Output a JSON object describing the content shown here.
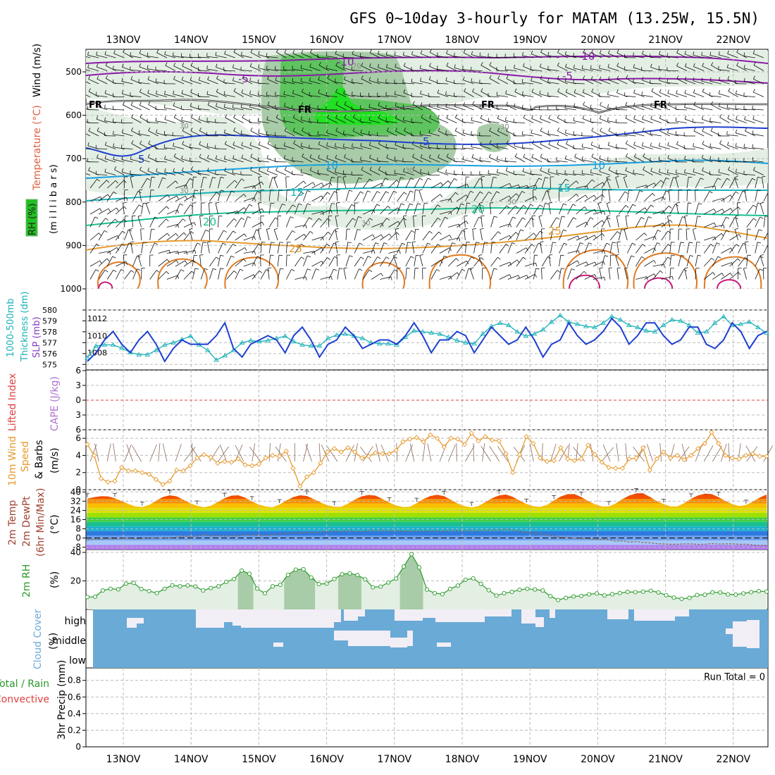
{
  "chart_data": {
    "type": "meteogram",
    "title": "GFS 0~10day 3-hourly for MATAM (13.25W, 15.5N)",
    "date_labels": [
      "13NOV",
      "14NOV",
      "15NOV",
      "16NOV",
      "17NOV",
      "18NOV",
      "19NOV",
      "20NOV",
      "21NOV",
      "22NOV"
    ],
    "colors": {
      "rh_light": "#e3efe3",
      "rh_mid": "#a8cca8",
      "rh_dark": "#5ec45e",
      "rh_bright": "#22e022",
      "dark_blue": "#1e3fd0",
      "cyan": "#1ab2b8",
      "orange": "#e69a2e",
      "purple": "#8a1aa8",
      "green": "#2b9a2b",
      "cloud": "#6aaad6",
      "cloud_clear": "#f2eef5"
    },
    "panels": {
      "upper": {
        "labels": {
          "rh": "RH (%)",
          "temp": "Temperature (°C)",
          "wind": "Wind (m/s)",
          "unit": "(m i l l i b a r s)"
        },
        "yticks": [
          500,
          600,
          700,
          800,
          900,
          1000
        ],
        "isotherm_labels": [
          "-10",
          "-5",
          "FR",
          "5",
          "10",
          "15",
          "20",
          "25"
        ],
        "rh_labels": [
          "70",
          "30"
        ]
      },
      "slp": {
        "labels": {
          "thick": "1000-500mb",
          "thick2": "Thickness (dm)",
          "slp": "SLP (mb)"
        },
        "thickness_ticks": [
          "580",
          "579",
          "578",
          "577",
          "576",
          "575"
        ],
        "slp_ticks": [
          "1012",
          "1010",
          "1008"
        ],
        "slp_range": [
          1006,
          1013
        ],
        "thickness_range": [
          574.5,
          580
        ],
        "slp_values": [
          1007.0,
          1008.0,
          1009.5,
          1010.5,
          1009.0,
          1008.0,
          1009.5,
          1010.5,
          1009.0,
          1007.0,
          1008.5,
          1009.5,
          1009.0,
          1009.0,
          1009.0,
          1010.0,
          1011.5,
          1008.5,
          1007.5,
          1009.0,
          1009.5,
          1010.0,
          1009.5,
          1008.0,
          1010.0,
          1011.0,
          1009.5,
          1007.5,
          1009.0,
          1009.5,
          1011.0,
          1010.0,
          1008.5,
          1009.0,
          1009.5,
          1009.5,
          1009.0,
          1010.0,
          1011.5,
          1010.0,
          1008.0,
          1009.5,
          1009.5,
          1010.5,
          1010.0,
          1008.0,
          1009.5,
          1011.0,
          1010.0,
          1009.0,
          1009.5,
          1011.0,
          1009.5,
          1007.5,
          1009.0,
          1009.5,
          1011.5,
          1010.0,
          1009.0,
          1009.5,
          1010.5,
          1012.0,
          1011.0,
          1009.0,
          1010.0,
          1011.5,
          1011.5,
          1010.0,
          1009.0,
          1009.5,
          1011.0,
          1011.0,
          1009.0,
          1008.5,
          1009.5,
          1011.5,
          1010.5,
          1008.5,
          1010.0,
          1010.5
        ],
        "thickness_values": [
          575.6,
          576.7,
          576.8,
          576.8,
          576.5,
          576.1,
          575.9,
          575.9,
          576.3,
          576.8,
          577.0,
          577.3,
          577.6,
          576.8,
          576.3,
          575.4,
          575.8,
          576.3,
          577.0,
          577.2,
          577.1,
          577.2,
          577.4,
          577.6,
          577.1,
          576.8,
          576.7,
          576.7,
          577.4,
          577.7,
          577.8,
          577.6,
          577.4,
          577.0,
          576.9,
          576.9,
          576.8,
          577.5,
          578.1,
          578.0,
          577.9,
          577.8,
          577.5,
          577.2,
          577.0,
          576.9,
          577.8,
          578.5,
          578.8,
          578.6,
          578.0,
          577.6,
          577.8,
          578.2,
          578.9,
          579.5,
          578.9,
          578.7,
          578.5,
          578.4,
          578.8,
          579.4,
          579.1,
          578.6,
          578.4,
          578.1,
          578.0,
          578.6,
          579.1,
          579.0,
          578.6,
          577.9,
          578.0,
          578.8,
          579.4,
          578.6,
          578.7,
          578.9,
          578.4,
          577.9
        ]
      },
      "cape": {
        "labels": {
          "li": "Lifted Index",
          "cape": "CAPE (J/kg)"
        },
        "li_ticks": [
          "-6",
          "-3",
          "0",
          "3",
          "6"
        ],
        "li_range": [
          -6,
          6
        ],
        "li_values": []
      },
      "wind10m": {
        "labels": {
          "l1": "10m Wind",
          "l2": "Speed",
          "l3": "& Barbs",
          "l4": "(m/s)"
        },
        "yticks": [
          "6",
          "4",
          "2",
          "0"
        ],
        "range": [
          0,
          7
        ],
        "speed_values": [
          5.3,
          4.0,
          1.3,
          0.9,
          1.0,
          2.6,
          2.2,
          2.2,
          2.0,
          1.8,
          1.2,
          0.6,
          1.0,
          2.3,
          2.2,
          2.8,
          3.7,
          4.1,
          3.8,
          3.1,
          3.3,
          3.2,
          3.6,
          2.9,
          2.8,
          3.0,
          3.7,
          4.0,
          3.9,
          4.5,
          2.5,
          0.4,
          1.5,
          2.0,
          3.1,
          4.4,
          4.8,
          4.4,
          4.9,
          4.4,
          3.7,
          3.9,
          4.3,
          4.2,
          4.2,
          4.6,
          5.6,
          5.9,
          6.1,
          5.6,
          6.4,
          6.0,
          5.0,
          6.0,
          5.9,
          5.3,
          6.6,
          5.7,
          6.2,
          5.8,
          5.7,
          4.2,
          2.0,
          4.1,
          6.2,
          5.4,
          3.7,
          3.3,
          3.4,
          4.9,
          3.6,
          3.4,
          3.6,
          5.2,
          4.1,
          3.2,
          2.6,
          2.5,
          2.5,
          3.6,
          3.7,
          4.9,
          2.3,
          3.6,
          4.4,
          3.7,
          4.0,
          3.5,
          4.0,
          4.8,
          5.4,
          6.7,
          5.4,
          4.0,
          3.7,
          3.6,
          4.0,
          4.2,
          3.9,
          3.9
        ]
      },
      "temp2m": {
        "labels": {
          "l1": "2m Temp",
          "l2": "2m DewPt",
          "l3": "(6hr Min/Max)",
          "l4": "(°C)"
        },
        "yticks": [
          "40",
          "32",
          "24",
          "16",
          "8",
          "0",
          "-8"
        ],
        "range": [
          -10,
          42
        ],
        "temp_values": [
          34.2,
          35.5,
          36.3,
          36.2,
          34.5,
          32.0,
          29.5,
          27.4,
          26.8,
          28.7,
          32.4,
          35.6,
          37.1,
          36.2,
          33.3,
          30.2,
          27.9,
          26.7,
          28.0,
          31.3,
          34.6,
          36.8,
          37.1,
          35.0,
          31.7,
          29.1,
          27.4,
          26.7,
          29.1,
          32.6,
          35.5,
          37.1,
          36.5,
          33.8,
          30.9,
          28.5,
          27.2,
          27.1,
          30.0,
          33.5,
          36.2,
          37.4,
          36.8,
          34.0,
          30.8,
          28.3,
          26.8,
          27.2,
          30.3,
          33.9,
          36.5,
          37.6,
          36.4,
          33.2,
          30.0,
          27.7,
          26.6,
          27.8,
          31.1,
          34.6,
          37.0,
          37.8,
          35.8,
          32.5,
          29.6,
          27.7,
          27.0,
          28.8,
          32.6,
          36.0,
          38.1,
          38.2,
          35.6,
          32.1,
          29.4,
          27.5,
          27.4,
          30.0,
          33.8,
          36.9,
          38.7,
          38.8,
          35.7,
          32.1,
          29.5,
          27.5,
          27.5,
          30.4,
          34.1,
          36.9,
          38.5,
          38.2,
          35.5,
          32.2,
          29.5,
          27.8,
          28.6,
          31.6,
          35.1,
          37.8
        ],
        "dew_values": [
          -1.7,
          -0.8,
          -1.2,
          -0.5,
          -0.9,
          -0.3,
          -0.2,
          -0.8,
          -0.5,
          0.1,
          -0.1,
          -0.1,
          0.1,
          0.5,
          1.7,
          1.3,
          1.7,
          2.6,
          1.8,
          2.0,
          1.7,
          1.8,
          1.8,
          2.8,
          2.8,
          2.2,
          2.5,
          2.7,
          3.4,
          4.2,
          4.2,
          4.7,
          4.7,
          4.8,
          5.3,
          5.6,
          6.2,
          5.7,
          6.6,
          5.7,
          5.7,
          6.5,
          6.3,
          6.7,
          6.3,
          6.3,
          6.2,
          5.9,
          6.1,
          6.1,
          6.4,
          6.1,
          6.0,
          6.8,
          6.2,
          6.3,
          6.6,
          6.4,
          6.7,
          6.9,
          6.7,
          7.6,
          6.6,
          6.2,
          4.8,
          4.5,
          3.6,
          2.5,
          1.7,
          0.6,
          0.5,
          -0.2,
          -0.3,
          -0.6,
          -1.2,
          -1.0,
          -1.6,
          -2.8,
          -2.5,
          -3.5,
          -3.1,
          -3.9,
          -4.1,
          -4.9,
          -5.1,
          -5.4,
          -5.4,
          -5.1,
          -5.1,
          -5.5,
          -5.4,
          -4.8,
          -5.2,
          -5.1,
          -5.0,
          -5.5,
          -5.3,
          -6.0,
          -6.4,
          -6.4
        ],
        "band_colors": [
          "#b07cf0",
          "#a8c8f8",
          "#6ca0f0",
          "#2f7ae0",
          "#18b0d0",
          "#18c090",
          "#40d040",
          "#a0e000",
          "#e0e000",
          "#f8c000",
          "#f89000",
          "#f05000",
          "#d02000",
          "#a00000"
        ]
      },
      "rh2m": {
        "labels": {
          "l1": "2m RH",
          "l2": "(%)"
        },
        "yticks": [
          "40",
          "20"
        ],
        "range": [
          0,
          42
        ],
        "values": [
          8.7,
          8.9,
          13.3,
          14.5,
          14.1,
          18.1,
          18.6,
          14.3,
          12.9,
          11.5,
          14.5,
          16.9,
          16.2,
          16.8,
          16.1,
          13.3,
          15.0,
          16.2,
          19.3,
          21.3,
          27.3,
          25.0,
          14.6,
          11.3,
          16.2,
          17.3,
          24.3,
          27.9,
          28.2,
          22.4,
          17.8,
          18.1,
          21.4,
          24.7,
          25.3,
          24.1,
          21.1,
          15.5,
          16.0,
          18.9,
          21.6,
          30.1,
          38.8,
          29.5,
          13.9,
          11.4,
          10.7,
          14.4,
          16.7,
          20.8,
          21.8,
          17.9,
          13.5,
          9.7,
          11.4,
          12.3,
          13.8,
          14.5,
          14.0,
          13.3,
          9.3,
          6.6,
          8.1,
          9.1,
          9.5,
          10.6,
          11.2,
          9.8,
          10.7,
          11.5,
          12.3,
          12.1,
          12.5,
          13.1,
          11.9,
          10.0,
          8.3,
          7.4,
          8.1,
          10.1,
          10.3,
          12.0,
          11.9,
          10.6,
          10.4,
          11.2,
          12.1,
          12.8,
          12.5
        ]
      },
      "cloud": {
        "labels": {
          "l1": "Cloud Cover",
          "l2": "(%)"
        },
        "levels": [
          "high",
          "middle",
          "low"
        ]
      },
      "precip": {
        "labels": {
          "l1": "Total / Rain",
          "l2": "Convective",
          "l3": "3hr Precip (mm)"
        },
        "yticks": [
          "0.8",
          "0.6",
          "0.4",
          "0.2",
          "0"
        ],
        "run_total": "Run Total = 0"
      }
    }
  }
}
